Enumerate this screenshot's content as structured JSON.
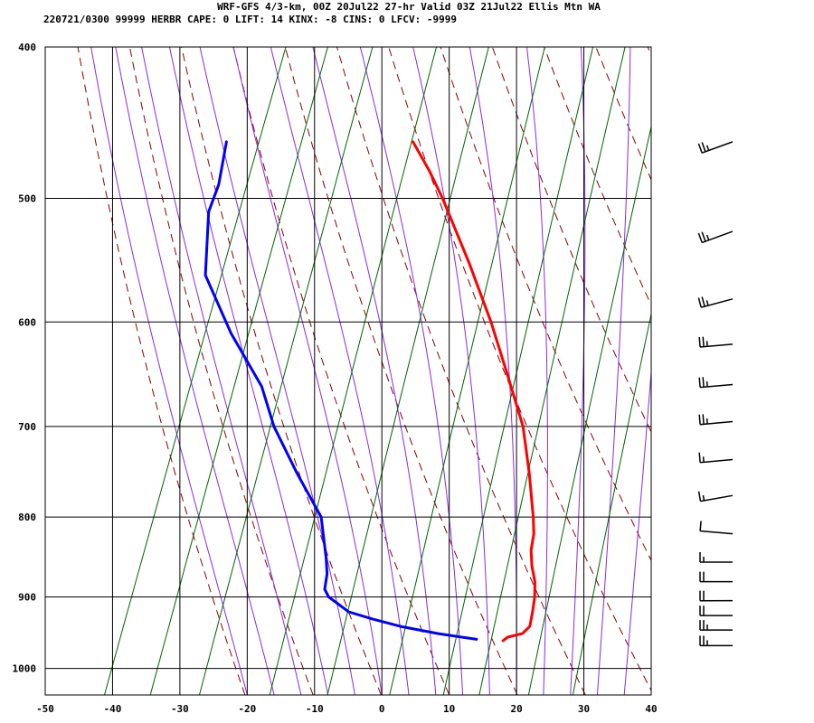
{
  "header": {
    "line1": "WRF-GFS 4/3-km, 00Z 20Jul22 27-hr Valid 03Z 21Jul22 Ellis Mtn WA",
    "line2": "220721/0300 99999  HERBR   CAPE:     0 LIFT:    14 KINX:    -8 CINS:     0 LFCV: -9999"
  },
  "colors": {
    "temperature": "#ff0000",
    "dewpoint": "#0000ff",
    "isotherm_grid": "#000000",
    "dry_adiabat": "#8b0000",
    "moist_adiabat": "#8a2be2",
    "mixing_ratio": "#006400",
    "wind_barb": "#000000"
  },
  "chart_data": {
    "type": "skew-t",
    "x_axis": {
      "label": "",
      "range": [
        -50,
        40
      ],
      "ticks": [
        -50,
        -40,
        -30,
        -20,
        -10,
        0,
        10,
        20,
        30,
        40
      ],
      "units": "°C"
    },
    "y_axis": {
      "label": "",
      "range": [
        1040,
        400
      ],
      "scale": "log",
      "ticks": [
        400,
        500,
        600,
        700,
        800,
        900,
        1000
      ],
      "units": "hPa"
    },
    "grid": true,
    "series": [
      {
        "kind": "temperature",
        "points": [
          {
            "p": 960,
            "t": 15.0
          },
          {
            "p": 955,
            "t": 15.5
          },
          {
            "p": 950,
            "t": 17.5
          },
          {
            "p": 940,
            "t": 18.2
          },
          {
            "p": 920,
            "t": 17.8
          },
          {
            "p": 900,
            "t": 17.3
          },
          {
            "p": 880,
            "t": 16.5
          },
          {
            "p": 860,
            "t": 15.2
          },
          {
            "p": 840,
            "t": 14.2
          },
          {
            "p": 820,
            "t": 13.7
          },
          {
            "p": 800,
            "t": 12.7
          },
          {
            "p": 750,
            "t": 9.7
          },
          {
            "p": 700,
            "t": 6.2
          },
          {
            "p": 650,
            "t": 1.2
          },
          {
            "p": 600,
            "t": -4.3
          },
          {
            "p": 550,
            "t": -10.8
          },
          {
            "p": 500,
            "t": -18.3
          },
          {
            "p": 480,
            "t": -21.8
          },
          {
            "p": 460,
            "t": -25.8
          }
        ]
      },
      {
        "kind": "dewpoint",
        "points": [
          {
            "p": 958,
            "t": 11.0
          },
          {
            "p": 950,
            "t": 5.0
          },
          {
            "p": 940,
            "t": -1.0
          },
          {
            "p": 930,
            "t": -5.5
          },
          {
            "p": 920,
            "t": -9.5
          },
          {
            "p": 900,
            "t": -13.3
          },
          {
            "p": 890,
            "t": -14.3
          },
          {
            "p": 870,
            "t": -14.8
          },
          {
            "p": 850,
            "t": -15.8
          },
          {
            "p": 800,
            "t": -18.8
          },
          {
            "p": 750,
            "t": -24.8
          },
          {
            "p": 700,
            "t": -30.8
          },
          {
            "p": 660,
            "t": -34.8
          },
          {
            "p": 610,
            "t": -42.3
          },
          {
            "p": 560,
            "t": -49.3
          },
          {
            "p": 510,
            "t": -52.3
          },
          {
            "p": 490,
            "t": -52.3
          },
          {
            "p": 460,
            "t": -53.5
          }
        ]
      }
    ],
    "wind_barbs": [
      {
        "p": 967,
        "dir": 270,
        "kt": 25
      },
      {
        "p": 945,
        "dir": 270,
        "kt": 25
      },
      {
        "p": 925,
        "dir": 270,
        "kt": 20
      },
      {
        "p": 905,
        "dir": 270,
        "kt": 20
      },
      {
        "p": 880,
        "dir": 270,
        "kt": 20
      },
      {
        "p": 855,
        "dir": 270,
        "kt": 15
      },
      {
        "p": 820,
        "dir": 275,
        "kt": 10
      },
      {
        "p": 775,
        "dir": 260,
        "kt": 15
      },
      {
        "p": 735,
        "dir": 265,
        "kt": 15
      },
      {
        "p": 695,
        "dir": 265,
        "kt": 25
      },
      {
        "p": 658,
        "dir": 265,
        "kt": 25
      },
      {
        "p": 620,
        "dir": 265,
        "kt": 25
      },
      {
        "p": 580,
        "dir": 255,
        "kt": 25
      },
      {
        "p": 525,
        "dir": 250,
        "kt": 25
      },
      {
        "p": 460,
        "dir": 250,
        "kt": 25
      }
    ]
  }
}
